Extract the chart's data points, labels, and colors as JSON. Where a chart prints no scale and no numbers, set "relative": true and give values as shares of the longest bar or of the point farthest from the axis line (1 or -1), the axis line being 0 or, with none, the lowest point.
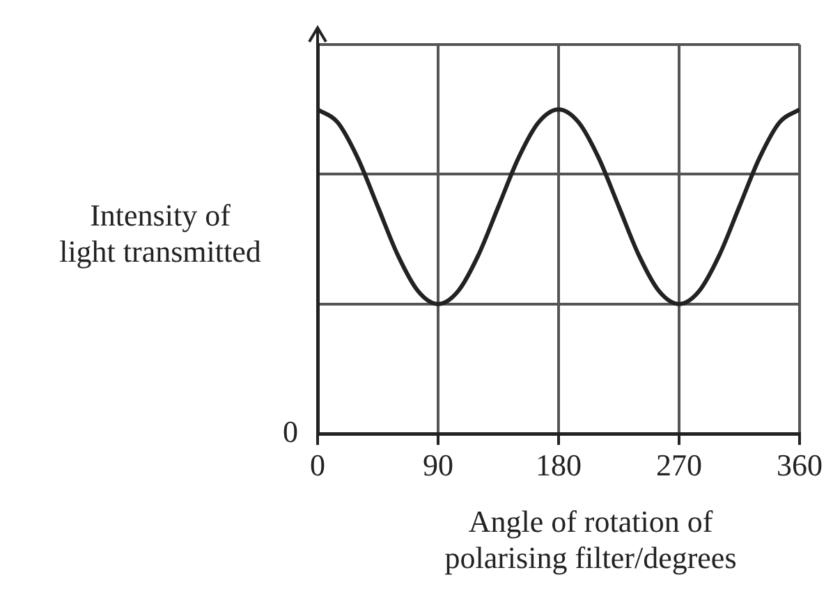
{
  "chart_data": {
    "type": "line",
    "relative": true,
    "ylabel": "Intensity of\nlight transmitted",
    "xlabel": "Angle of rotation of\npolarising filter/degrees",
    "x": [
      0,
      15,
      30,
      45,
      60,
      75,
      90,
      105,
      120,
      135,
      150,
      165,
      180,
      195,
      210,
      225,
      240,
      255,
      270,
      285,
      300,
      315,
      330,
      345,
      360
    ],
    "series": [
      {
        "color": "#222222",
        "values": [
          1,
          0.96,
          0.85,
          0.7,
          0.55,
          0.44,
          0.4,
          0.44,
          0.55,
          0.7,
          0.85,
          0.96,
          1,
          0.96,
          0.85,
          0.7,
          0.55,
          0.44,
          0.4,
          0.44,
          0.55,
          0.7,
          0.85,
          0.96,
          1
        ]
      }
    ],
    "xlim": [
      0,
      360
    ],
    "xticks": [
      0,
      90,
      180,
      270,
      360
    ],
    "annotations": [
      "0"
    ],
    "grid": true,
    "legend": false,
    "marker": "none",
    "line_style": "solid"
  }
}
